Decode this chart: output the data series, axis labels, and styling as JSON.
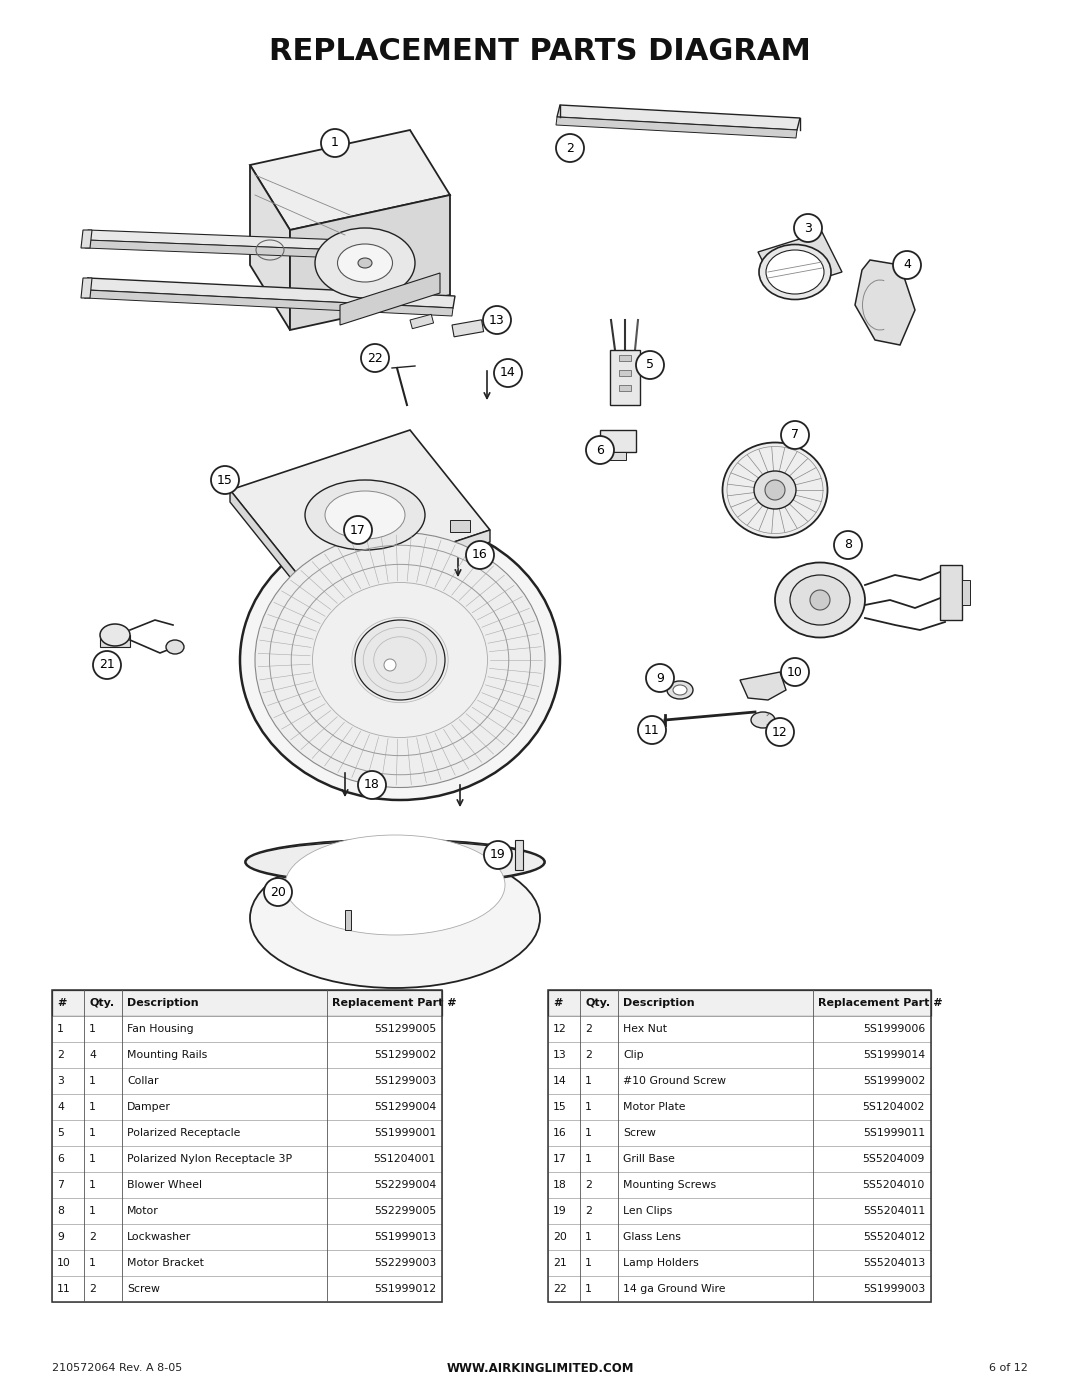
{
  "title": "REPLACEMENT PARTS DIAGRAM",
  "bg_color": "#ffffff",
  "title_fontsize": 22,
  "footer_left": "210572064 Rev. A 8-05",
  "footer_center": "WWW.AIRKINGLIMITED.COM",
  "footer_right": "6 of 12",
  "parts_left": [
    {
      "num": "1",
      "qty": "1",
      "desc": "Fan Housing",
      "part": "5S1299005"
    },
    {
      "num": "2",
      "qty": "4",
      "desc": "Mounting Rails",
      "part": "5S1299002"
    },
    {
      "num": "3",
      "qty": "1",
      "desc": "Collar",
      "part": "5S1299003"
    },
    {
      "num": "4",
      "qty": "1",
      "desc": "Damper",
      "part": "5S1299004"
    },
    {
      "num": "5",
      "qty": "1",
      "desc": "Polarized Receptacle",
      "part": "5S1999001"
    },
    {
      "num": "6",
      "qty": "1",
      "desc": "Polarized Nylon Receptacle 3P",
      "part": "5S1204001"
    },
    {
      "num": "7",
      "qty": "1",
      "desc": "Blower Wheel",
      "part": "5S2299004"
    },
    {
      "num": "8",
      "qty": "1",
      "desc": "Motor",
      "part": "5S2299005"
    },
    {
      "num": "9",
      "qty": "2",
      "desc": "Lockwasher",
      "part": "5S1999013"
    },
    {
      "num": "10",
      "qty": "1",
      "desc": "Motor Bracket",
      "part": "5S2299003"
    },
    {
      "num": "11",
      "qty": "2",
      "desc": "Screw",
      "part": "5S1999012"
    }
  ],
  "parts_right": [
    {
      "num": "12",
      "qty": "2",
      "desc": "Hex Nut",
      "part": "5S1999006"
    },
    {
      "num": "13",
      "qty": "2",
      "desc": "Clip",
      "part": "5S1999014"
    },
    {
      "num": "14",
      "qty": "1",
      "desc": "#10 Ground Screw",
      "part": "5S1999002"
    },
    {
      "num": "15",
      "qty": "1",
      "desc": "Motor Plate",
      "part": "5S1204002"
    },
    {
      "num": "16",
      "qty": "1",
      "desc": "Screw",
      "part": "5S1999011"
    },
    {
      "num": "17",
      "qty": "1",
      "desc": "Grill Base",
      "part": "5S5204009"
    },
    {
      "num": "18",
      "qty": "2",
      "desc": "Mounting Screws",
      "part": "5S5204010"
    },
    {
      "num": "19",
      "qty": "2",
      "desc": "Len Clips",
      "part": "5S5204011"
    },
    {
      "num": "20",
      "qty": "1",
      "desc": "Glass Lens",
      "part": "5S5204012"
    },
    {
      "num": "21",
      "qty": "1",
      "desc": "Lamp Holders",
      "part": "5S5204013"
    },
    {
      "num": "22",
      "qty": "1",
      "desc": "14 ga Ground Wire",
      "part": "5S1999003"
    }
  ]
}
